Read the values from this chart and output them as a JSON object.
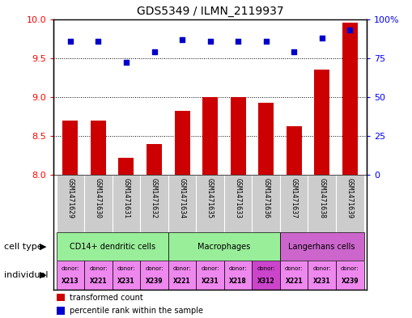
{
  "title": "GDS5349 / ILMN_2119937",
  "samples": [
    "GSM1471629",
    "GSM1471630",
    "GSM1471631",
    "GSM1471632",
    "GSM1471634",
    "GSM1471635",
    "GSM1471633",
    "GSM1471636",
    "GSM1471637",
    "GSM1471638",
    "GSM1471639"
  ],
  "bar_values": [
    8.7,
    8.7,
    8.22,
    8.4,
    8.82,
    9.0,
    9.0,
    8.93,
    8.62,
    9.35,
    9.95
  ],
  "dot_values_pct": [
    86,
    86,
    72,
    79,
    87,
    86,
    86,
    86,
    79,
    88,
    93
  ],
  "ylim": [
    8.0,
    10.0
  ],
  "yticks": [
    8.0,
    8.5,
    9.0,
    9.5,
    10.0
  ],
  "y2lim": [
    0,
    100
  ],
  "y2ticks": [
    0,
    25,
    50,
    75,
    100
  ],
  "y2ticklabels": [
    "0",
    "25",
    "50",
    "75",
    "100%"
  ],
  "bar_color": "#cc0000",
  "dot_color": "#0000cc",
  "gsm_bg": "#cccccc",
  "cell_type_groups": [
    {
      "label": "CD14+ dendritic cells",
      "start": 0,
      "end": 3,
      "color": "#99ee99"
    },
    {
      "label": "Macrophages",
      "start": 4,
      "end": 7,
      "color": "#99ee99"
    },
    {
      "label": "Langerhans cells",
      "start": 8,
      "end": 10,
      "color": "#cc66cc"
    }
  ],
  "individual_donors": [
    {
      "donor": "X213",
      "color": "#ee88ee"
    },
    {
      "donor": "X221",
      "color": "#ee88ee"
    },
    {
      "donor": "X231",
      "color": "#ee88ee"
    },
    {
      "donor": "X239",
      "color": "#ee88ee"
    },
    {
      "donor": "X221",
      "color": "#ee88ee"
    },
    {
      "donor": "X231",
      "color": "#ee88ee"
    },
    {
      "donor": "X218",
      "color": "#ee88ee"
    },
    {
      "donor": "X312",
      "color": "#cc44cc"
    },
    {
      "donor": "X221",
      "color": "#ee88ee"
    },
    {
      "donor": "X231",
      "color": "#ee88ee"
    },
    {
      "donor": "X239",
      "color": "#ee88ee"
    }
  ],
  "legend_bar_label": "transformed count",
  "legend_dot_label": "percentile rank within the sample",
  "cell_type_label": "cell type",
  "individual_label": "individual"
}
